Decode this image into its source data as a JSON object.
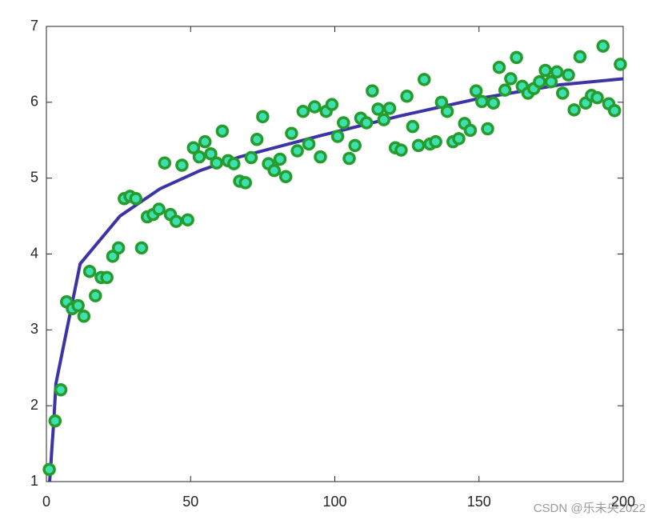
{
  "chart_data": {
    "type": "scatter",
    "xlim": [
      0,
      200
    ],
    "ylim": [
      1,
      7
    ],
    "xticks": [
      0,
      50,
      100,
      150,
      200
    ],
    "yticks": [
      1,
      2,
      3,
      4,
      5,
      6,
      7
    ],
    "annotation": "CSDN @乐未央2022",
    "series": [
      {
        "type": "line",
        "color": "#3b33a6",
        "x": [
          1.1,
          1.4,
          1.9,
          2.5,
          3.3,
          11.7,
          25.5,
          39.4,
          53.3,
          67,
          95,
          122.6,
          150,
          178,
          200
        ],
        "values": [
          1.0,
          1.13,
          1.44,
          1.76,
          2.29,
          3.87,
          4.5,
          4.86,
          5.1,
          5.28,
          5.56,
          5.82,
          6.05,
          6.23,
          6.31
        ]
      },
      {
        "type": "scatter",
        "color": "#3fe0b0",
        "edgecolor": "#259c2c",
        "x": [
          1,
          3,
          5,
          7,
          9,
          11,
          13,
          15,
          17,
          19,
          21,
          23,
          25,
          27,
          29,
          31,
          33,
          35,
          37,
          39,
          41,
          43,
          45,
          47,
          49,
          51,
          53,
          55,
          57,
          59,
          61,
          63,
          65,
          67,
          69,
          71,
          73,
          75,
          77,
          79,
          81,
          83,
          85,
          87,
          89,
          91,
          93,
          95,
          97,
          99,
          101,
          103,
          105,
          107,
          109,
          111,
          113,
          115,
          117,
          119,
          121,
          123,
          125,
          127,
          129,
          131,
          133,
          135,
          137,
          139,
          141,
          143,
          145,
          147,
          149,
          151,
          153,
          155,
          157,
          159,
          161,
          163,
          165,
          167,
          169,
          171,
          173,
          175,
          177,
          179,
          181,
          183,
          185,
          187,
          189,
          191,
          193,
          195,
          197,
          199
        ],
        "values": [
          1.16,
          1.8,
          2.21,
          3.37,
          3.28,
          3.32,
          3.18,
          3.77,
          3.45,
          3.69,
          3.69,
          3.97,
          4.08,
          4.73,
          4.76,
          4.73,
          4.08,
          4.49,
          4.52,
          4.59,
          5.2,
          4.52,
          4.43,
          5.17,
          4.45,
          5.4,
          5.28,
          5.48,
          5.32,
          5.2,
          5.62,
          5.23,
          5.19,
          4.96,
          4.94,
          5.27,
          5.51,
          5.81,
          5.19,
          5.1,
          5.25,
          5.02,
          5.59,
          5.36,
          5.88,
          5.45,
          5.94,
          5.28,
          5.88,
          5.97,
          5.55,
          5.73,
          5.26,
          5.43,
          5.79,
          5.73,
          6.15,
          5.91,
          5.77,
          5.92,
          5.4,
          5.37,
          6.08,
          5.68,
          5.43,
          6.3,
          5.45,
          5.48,
          6.0,
          5.88,
          5.48,
          5.52,
          5.72,
          5.63,
          6.15,
          6.01,
          5.65,
          5.99,
          6.46,
          6.16,
          6.31,
          6.59,
          6.21,
          6.12,
          6.18,
          6.27,
          6.42,
          6.27,
          6.4,
          6.12,
          6.36,
          5.9,
          6.6,
          5.99,
          6.09,
          6.06,
          6.74,
          5.98,
          5.89,
          6.5
        ]
      }
    ]
  }
}
